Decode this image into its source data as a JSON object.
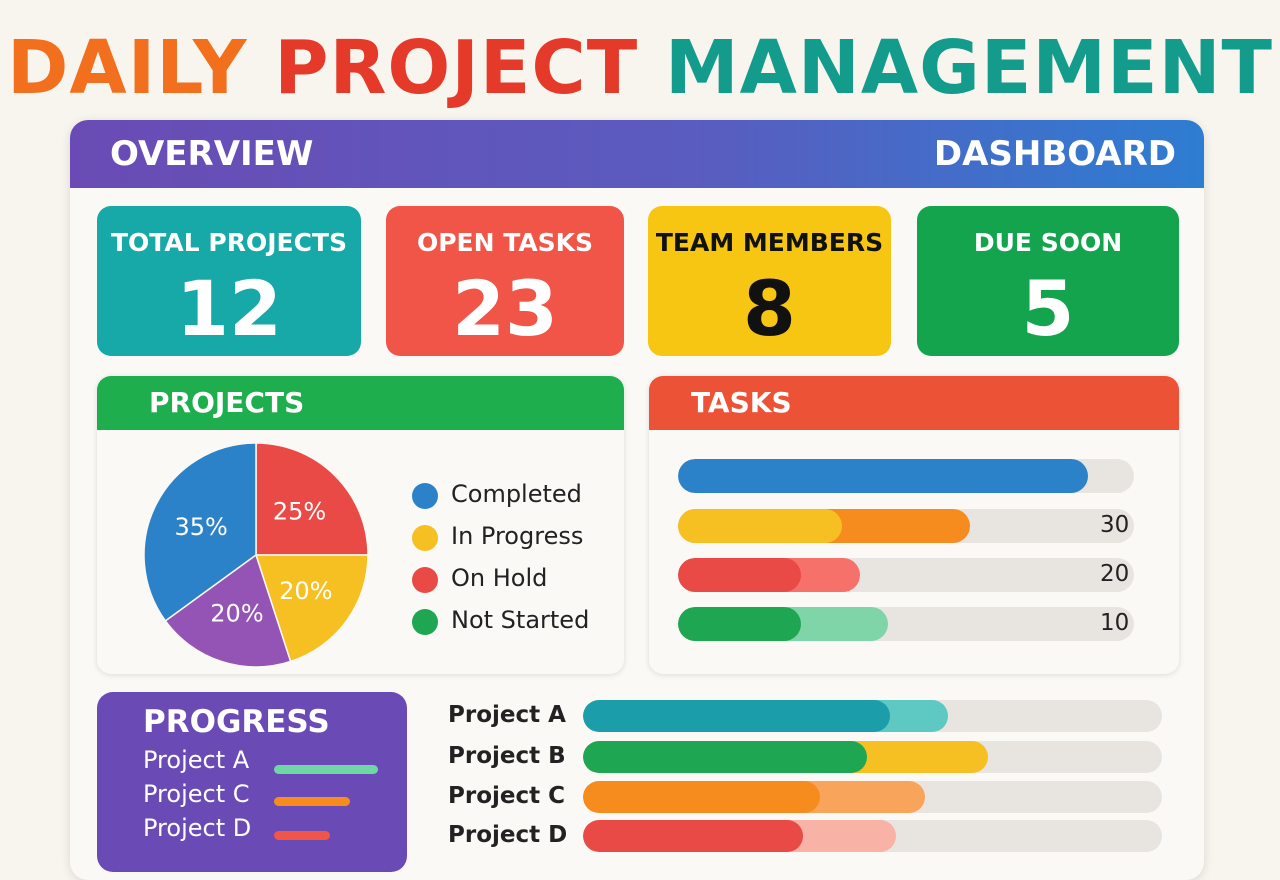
{
  "title": {
    "part1": "DAILY",
    "part2": "PROJECT",
    "part3": "MANAGEMENT",
    "colors": [
      "#f26f1d",
      "#e53a2a",
      "#139b8c"
    ]
  },
  "header": {
    "left": "OVERVIEW",
    "right": "DASHBOARD"
  },
  "stats": [
    {
      "label": "TOTAL PROJECTS",
      "value": "12",
      "color": "#17a9a7"
    },
    {
      "label": "OPEN TASKS",
      "value": "23",
      "color": "#f05548"
    },
    {
      "label": "TEAM MEMBERS",
      "value": "8",
      "color": "#f6c613"
    },
    {
      "label": "DUE SOON",
      "value": "5",
      "color": "#14a44d"
    }
  ],
  "projects_card": {
    "title": "PROJECTS"
  },
  "tasks_card": {
    "title": "TASKS"
  },
  "chart_data": [
    {
      "type": "pie",
      "title": "PROJECTS",
      "slices": [
        {
          "label": "25%",
          "value": 25,
          "color": "#e94a45"
        },
        {
          "label": "20%",
          "value": 20,
          "color": "#f6c022"
        },
        {
          "label": "20%",
          "value": 20,
          "color": "#9454b5"
        },
        {
          "label": "35%",
          "value": 35,
          "color": "#2c82c9"
        }
      ],
      "legend": [
        {
          "label": "Completed",
          "color": "#2c82c9"
        },
        {
          "label": "In Progress",
          "color": "#f6c022"
        },
        {
          "label": "On Hold",
          "color": "#e94a45"
        },
        {
          "label": "Not Started",
          "color": "#1fa653"
        }
      ]
    },
    {
      "type": "bar",
      "title": "TASKS",
      "bars": [
        {
          "value_label": "",
          "fill": 0.9,
          "secondary": 0.0,
          "color": "#2c82c9",
          "color2": "#2c82c9"
        },
        {
          "value_label": "30",
          "fill": 0.36,
          "secondary": 0.64,
          "color": "#f6c022",
          "color2": "#f78c1e"
        },
        {
          "value_label": "20",
          "fill": 0.27,
          "secondary": 0.4,
          "color": "#e94a45",
          "color2": "#f7716b"
        },
        {
          "value_label": "10",
          "fill": 0.27,
          "secondary": 0.46,
          "color": "#1fa653",
          "color2": "#7fd5a8"
        }
      ]
    },
    {
      "type": "bar",
      "title": "PROGRESS",
      "bars": [
        {
          "label": "Project A",
          "fill": 0.53,
          "secondary": 0.63,
          "color": "#1b9eaa",
          "color2": "#5dc9c2"
        },
        {
          "label": "Project B",
          "fill": 0.49,
          "secondary": 0.7,
          "color": "#1fa653",
          "color2": "#f6c022"
        },
        {
          "label": "Project C",
          "fill": 0.41,
          "secondary": 0.59,
          "color": "#f78c1e",
          "color2": "#f9a45b"
        },
        {
          "label": "Project D",
          "fill": 0.38,
          "secondary": 0.54,
          "color": "#e94a45",
          "color2": "#f8b2a6"
        }
      ]
    }
  ],
  "progress_card": {
    "title": "PROGRESS",
    "items": [
      {
        "label": "Project A",
        "color": "#6fd6a6"
      },
      {
        "label": "Project C",
        "color": "#f78c1e"
      },
      {
        "label": "Project D",
        "color": "#f05548"
      }
    ]
  }
}
